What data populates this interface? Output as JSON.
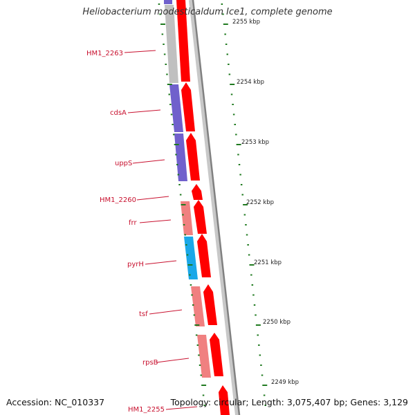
{
  "title": "Heliobacterium modesticaldum Ice1, complete genome",
  "footer": {
    "accession": "Accession: NC_010337",
    "topology": "Topology: circular; Length: 3,075,407 bp; Genes: 3,129"
  },
  "colors": {
    "forward_gene": "#ff0000",
    "label": "#c8102e",
    "tick": "#1f7a1f",
    "backbone": "#8a8a8a"
  },
  "kbp_ticks": [
    "2255 kbp",
    "2254 kbp",
    "2253 kbp",
    "2252 kbp",
    "2251 kbp",
    "2250 kbp",
    "2249 kbp"
  ],
  "gene_labels": [
    "HM1_2263",
    "cdsA",
    "uppS",
    "HM1_2260",
    "frr",
    "pyrH",
    "tsf",
    "rpsB",
    "HM1_2255"
  ]
}
